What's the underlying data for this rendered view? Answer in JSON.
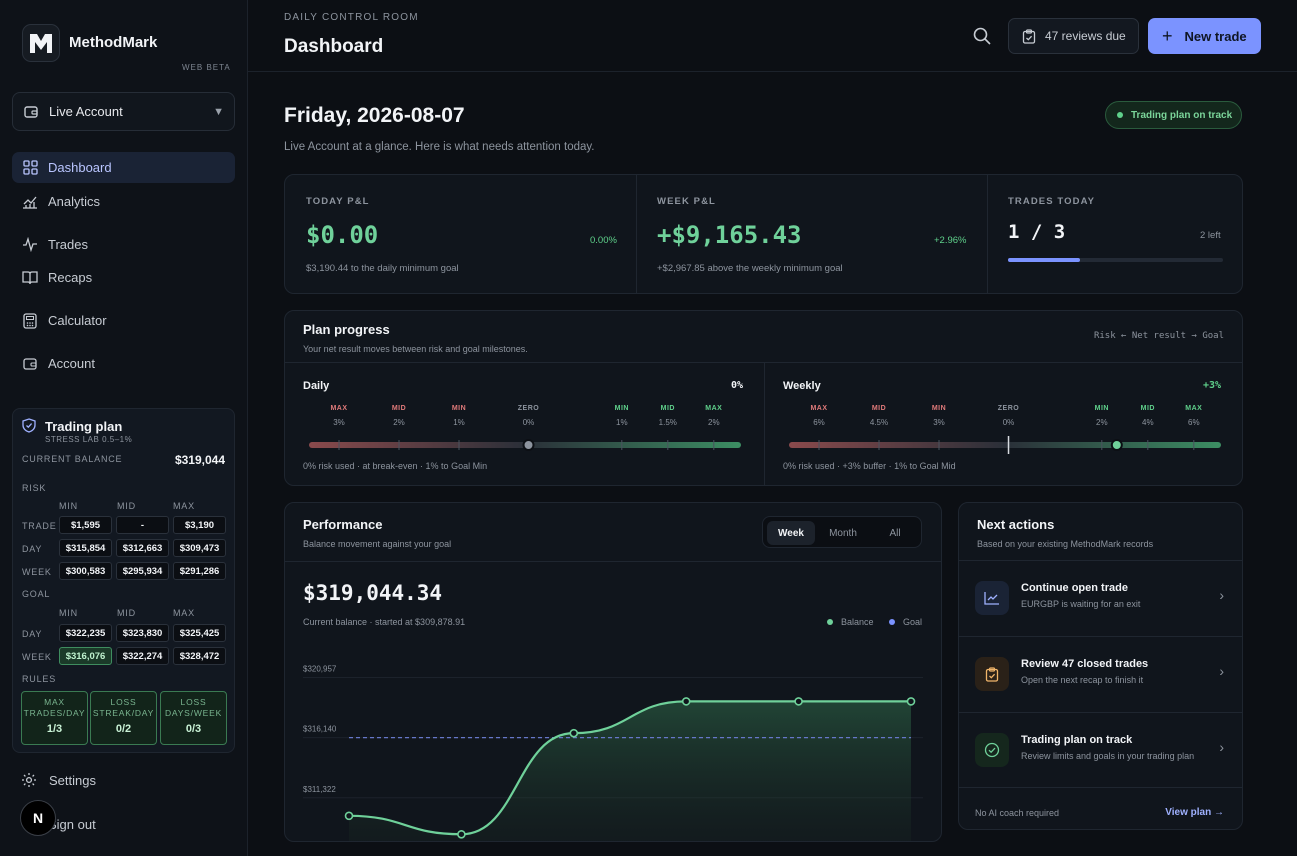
{
  "app": {
    "name": "MethodMark",
    "badge": "WEB BETA",
    "logo_letter": "M"
  },
  "account_selector": {
    "label": "Live Account"
  },
  "nav": [
    {
      "label": "Dashboard",
      "icon": "grid-icon",
      "active": true
    },
    {
      "label": "Analytics",
      "icon": "analytics-icon"
    },
    {
      "label": "Trades",
      "icon": "pulse-icon"
    },
    {
      "label": "Recaps",
      "icon": "book-icon"
    },
    {
      "label": "Calculator",
      "icon": "calculator-icon"
    },
    {
      "label": "Account",
      "icon": "wallet-icon"
    }
  ],
  "trading_plan": {
    "title": "Trading plan",
    "subtitle": "STRESS LAB 0.5–1%",
    "balance_label": "CURRENT BALANCE",
    "balance": "$319,044",
    "risk_label": "RISK",
    "goal_label": "GOAL",
    "cols": [
      "MIN",
      "MID",
      "MAX"
    ],
    "risk_rows": [
      {
        "label": "TRADE",
        "values": [
          "$1,595",
          "-",
          "$3,190"
        ]
      },
      {
        "label": "DAY",
        "values": [
          "$315,854",
          "$312,663",
          "$309,473"
        ]
      },
      {
        "label": "WEEK",
        "values": [
          "$300,583",
          "$295,934",
          "$291,286"
        ]
      }
    ],
    "goal_rows": [
      {
        "label": "DAY",
        "values": [
          "$322,235",
          "$323,830",
          "$325,425"
        ]
      },
      {
        "label": "WEEK",
        "values": [
          "$316,076",
          "$322,274",
          "$328,472"
        ]
      }
    ],
    "rules_label": "RULES",
    "rules": [
      {
        "l1": "MAX",
        "l2": "TRADES/DAY",
        "value": "1/3"
      },
      {
        "l1": "LOSS",
        "l2": "STREAK/DAY",
        "value": "0/2"
      },
      {
        "l1": "LOSS",
        "l2": "DAYS/WEEK",
        "value": "0/3"
      }
    ]
  },
  "footer_nav": {
    "settings": "Settings",
    "signout": "Sign out",
    "badge": "N"
  },
  "header": {
    "eyebrow": "DAILY CONTROL ROOM",
    "title": "Dashboard",
    "reviews": "47 reviews due",
    "new_trade": "New trade"
  },
  "overview": {
    "date": "Friday, 2026-08-07",
    "subtitle": "Live Account at a glance. Here is what needs attention today.",
    "status_pill": "Trading plan on track"
  },
  "stats": {
    "today": {
      "label": "TODAY P&L",
      "value": "$0.00",
      "pct": "0.00%",
      "note": "$3,190.44 to the daily minimum goal"
    },
    "week": {
      "label": "WEEK P&L",
      "value": "+$9,165.43",
      "pct": "+2.96%",
      "note": "+$2,967.85 above the weekly minimum goal"
    },
    "trades": {
      "label": "TRADES TODAY",
      "value": "1 / 3",
      "left": "2 left",
      "progress": 0.3333
    }
  },
  "plan_progress": {
    "title": "Plan progress",
    "subtitle": "Your net result moves between risk and goal milestones.",
    "legend": "Risk ← Net result → Goal",
    "daily": {
      "title": "Daily",
      "value": "0%",
      "milestones": [
        {
          "label": "MAX",
          "pct": "3%",
          "kind": "risk"
        },
        {
          "label": "MID",
          "pct": "2%",
          "kind": "risk"
        },
        {
          "label": "MIN",
          "pct": "1%",
          "kind": "risk"
        },
        {
          "label": "ZERO",
          "pct": "0%",
          "kind": "zero"
        },
        {
          "label": "MIN",
          "pct": "1%",
          "kind": "goal"
        },
        {
          "label": "MID",
          "pct": "1.5%",
          "kind": "goal"
        },
        {
          "label": "MAX",
          "pct": "2%",
          "kind": "goal"
        }
      ],
      "note": "0% risk used · at break-even · 1% to Goal Min"
    },
    "weekly": {
      "title": "Weekly",
      "value": "+3%",
      "milestones": [
        {
          "label": "MAX",
          "pct": "6%",
          "kind": "risk"
        },
        {
          "label": "MID",
          "pct": "4.5%",
          "kind": "risk"
        },
        {
          "label": "MIN",
          "pct": "3%",
          "kind": "risk"
        },
        {
          "label": "ZERO",
          "pct": "0%",
          "kind": "zero"
        },
        {
          "label": "MIN",
          "pct": "2%",
          "kind": "goal"
        },
        {
          "label": "MID",
          "pct": "4%",
          "kind": "goal"
        },
        {
          "label": "MAX",
          "pct": "6%",
          "kind": "goal"
        }
      ],
      "note": "0% risk used · +3% buffer · 1% to Goal Mid"
    }
  },
  "performance": {
    "title": "Performance",
    "subtitle": "Balance movement against your goal",
    "tabs": [
      "Week",
      "Month",
      "All"
    ],
    "active_tab": "Week",
    "balance": "$319,044.34",
    "balance_note": "Current balance · started at $309,878.91",
    "legend_balance": "Balance",
    "legend_goal": "Goal",
    "y_ticks": [
      "$320,957",
      "$316,140",
      "$311,322"
    ]
  },
  "chart_data": {
    "type": "area",
    "title": "Performance",
    "y_ticks": [
      320957,
      316140,
      311322
    ],
    "ylim": [
      306900,
      322600
    ],
    "series": [
      {
        "name": "Balance",
        "values": [
          309879,
          308400,
          316500,
          319044,
          319044,
          319044
        ]
      },
      {
        "name": "Goal",
        "values": [
          316140,
          316140,
          316140,
          316140,
          316140,
          316140
        ]
      }
    ],
    "colors": {
      "Balance": "#6fd19a",
      "Goal": "#7b93ff"
    }
  },
  "next_actions": {
    "title": "Next actions",
    "subtitle": "Based on your existing MethodMark records",
    "items": [
      {
        "title": "Continue open trade",
        "sub": "EURGBP is waiting for an exit",
        "icon": "chart-icon"
      },
      {
        "title": "Review 47 closed trades",
        "sub": "Open the next recap to finish it",
        "icon": "clipboard-icon"
      },
      {
        "title": "Trading plan on track",
        "sub": "Review limits and goals in your trading plan",
        "icon": "check-circle-icon"
      }
    ],
    "footer_note": "No AI coach required",
    "footer_link": "View plan"
  }
}
